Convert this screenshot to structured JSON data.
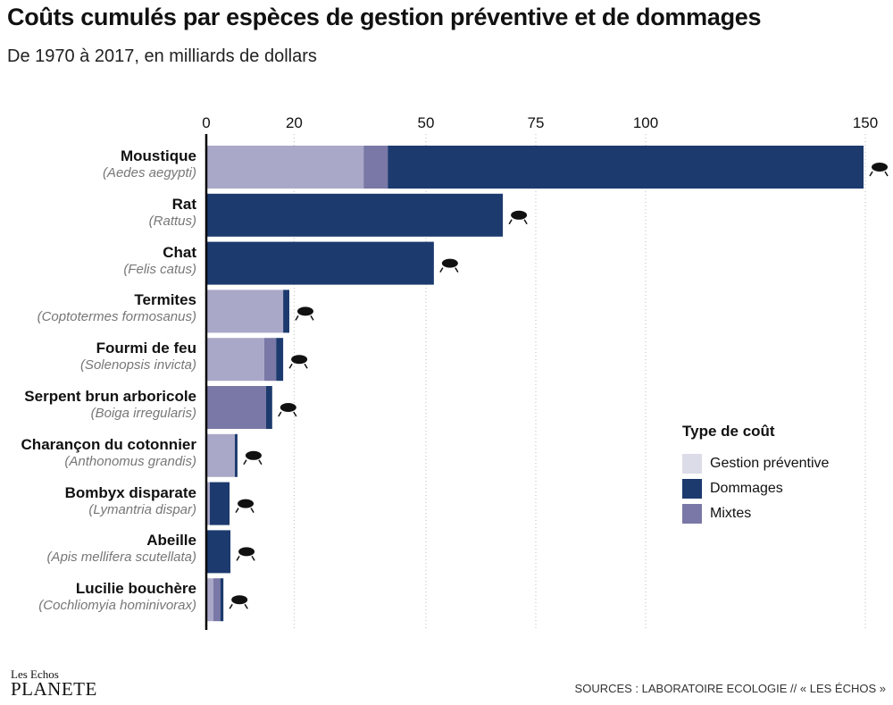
{
  "title": "Coûts cumulés par espèces de gestion préventive et de dommages",
  "subtitle": "De 1970 à 2017, en milliards de dollars",
  "colors": {
    "preventive": "#aaa8c8",
    "damages": "#1c3a6e",
    "mixed": "#7a78a6",
    "legend_preventive": "#dcdbe8"
  },
  "chart_data": {
    "type": "bar",
    "orientation": "horizontal",
    "stacked": true,
    "xlim": [
      0,
      150
    ],
    "ticks": [
      0,
      20,
      50,
      75,
      100,
      150
    ],
    "grid": true,
    "legend_position": "right",
    "legend_title": "Type de coût",
    "categories": [
      {
        "name": "Moustique",
        "species": "(Aedes aegypti)",
        "icon": "mosquito-icon"
      },
      {
        "name": "Rat",
        "species": "(Rattus)",
        "icon": "rat-icon"
      },
      {
        "name": "Chat",
        "species": "(Felis catus)",
        "icon": "cat-icon"
      },
      {
        "name": "Termites",
        "species": "(Coptotermes formosanus)",
        "icon": "termite-icon"
      },
      {
        "name": "Fourmi de feu",
        "species": "(Solenopsis invicta)",
        "icon": "ant-icon"
      },
      {
        "name": "Serpent brun arboricole",
        "species": "(Boiga irregularis)",
        "icon": "snake-icon"
      },
      {
        "name": "Charançon du cotonnier",
        "species": "(Anthonomus grandis)",
        "icon": "weevil-icon"
      },
      {
        "name": "Bombyx disparate",
        "species": "(Lymantria dispar)",
        "icon": "moth-icon"
      },
      {
        "name": "Abeille",
        "species": "(Apis mellifera scutellata)",
        "icon": "bee-icon"
      },
      {
        "name": "Lucilie bouchère",
        "species": "(Cochliomyia hominivorax)",
        "icon": "fly-icon"
      }
    ],
    "series": [
      {
        "name": "Gestion préventive",
        "key": "preventive",
        "values": [
          35.8,
          0,
          0,
          17.5,
          13.2,
          0,
          6.5,
          0.8,
          0,
          1.6
        ]
      },
      {
        "name": "Mixtes",
        "key": "mixed",
        "values": [
          5.5,
          0,
          0,
          0,
          2.7,
          13.6,
          0,
          0,
          0,
          1.6
        ]
      },
      {
        "name": "Dommages",
        "key": "damages",
        "values": [
          108.3,
          67.5,
          51.8,
          1.4,
          1.6,
          1.4,
          0.6,
          4.5,
          5.5,
          0.7
        ]
      }
    ],
    "legend_order": [
      "Gestion préventive",
      "Dommages",
      "Mixtes"
    ]
  },
  "footer": {
    "logo_top": "Les Echos",
    "logo_bottom": "PLANETE",
    "sources": "SOURCES : LABORATOIRE ECOLOGIE // « LES ÉCHOS »"
  }
}
